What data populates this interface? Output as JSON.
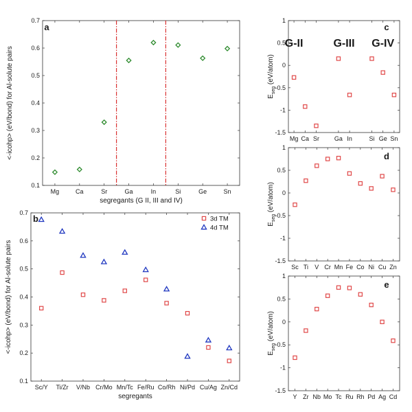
{
  "chart_data": [
    {
      "id": "a",
      "type": "scatter",
      "panel_label": "a",
      "categories": [
        "Mg",
        "Ca",
        "Sr",
        "Ga",
        "In",
        "Si",
        "Ge",
        "Sn"
      ],
      "series": [
        {
          "values": [
            0.148,
            0.158,
            0.33,
            0.555,
            0.62,
            0.611,
            0.563,
            0.598
          ],
          "marker": "diamond",
          "color": "#2e8b2e"
        }
      ],
      "xlabel": "segregants (G II, III and IV)",
      "ylabel": "<-icohp> (eV/bond) for Al-solute pairs",
      "ylim": [
        0.1,
        0.7
      ],
      "yticks": [
        "0.1",
        "0.2",
        "0.3",
        "0.4",
        "0.5",
        "0.6",
        "0.7"
      ],
      "dividers_between": [
        [
          2,
          3
        ],
        [
          4,
          5
        ]
      ],
      "divider_color": "#d62020"
    },
    {
      "id": "b",
      "type": "scatter",
      "panel_label": "b",
      "categories": [
        "Sc/Y",
        "Ti/Zr",
        "V/Nb",
        "Cr/Mo",
        "Mn/Tc",
        "Fe/Ru",
        "Co/Rh",
        "Ni/Pd",
        "Cu/Ag",
        "Zn/Cd"
      ],
      "series": [
        {
          "name": "3d TM",
          "values": [
            0.36,
            0.487,
            0.408,
            0.388,
            0.422,
            0.461,
            0.378,
            0.342,
            0.22,
            0.172
          ],
          "marker": "square",
          "color": "#e04848"
        },
        {
          "name": "4d TM",
          "values": [
            0.676,
            0.634,
            0.548,
            0.525,
            0.559,
            0.497,
            0.428,
            0.188,
            0.246,
            0.218
          ],
          "marker": "triangle",
          "color": "#2038c0"
        }
      ],
      "xlabel": "segregants",
      "ylabel": "<-icohp> (eV/bond) for Al-solute pairs",
      "ylim": [
        0.1,
        0.7
      ],
      "yticks": [
        "0.1",
        "0.2",
        "0.3",
        "0.4",
        "0.5",
        "0.6",
        "0.7"
      ],
      "legend": "top-right"
    },
    {
      "id": "c",
      "type": "scatter",
      "panel_label": "c",
      "categories": [
        "Mg",
        "Ca",
        "Sr",
        "",
        "Ga",
        "In",
        "",
        "Si",
        "Ge",
        "Sn"
      ],
      "series": [
        {
          "values": [
            -0.27,
            -0.92,
            -1.35,
            null,
            0.15,
            -0.66,
            null,
            0.15,
            -0.16,
            -0.66
          ],
          "marker": "square",
          "color": "#e04848"
        }
      ],
      "group_labels": [
        "G-II",
        "G-III",
        "G-IV"
      ],
      "ylabel": "E_seg (eV/atom)",
      "ylim": [
        -1.5,
        1
      ],
      "yticks": [
        "-1.5",
        "-1",
        "-0.5",
        "0",
        "0.5",
        "1"
      ]
    },
    {
      "id": "d",
      "type": "scatter",
      "panel_label": "d",
      "categories": [
        "Sc",
        "Ti",
        "V",
        "Cr",
        "Mn",
        "Fe",
        "Co",
        "Ni",
        "Cu",
        "Zn"
      ],
      "series": [
        {
          "values": [
            -0.26,
            0.27,
            0.6,
            0.75,
            0.77,
            0.43,
            0.21,
            0.1,
            0.37,
            0.07
          ],
          "marker": "square",
          "color": "#e04848"
        }
      ],
      "ylabel": "E_seg (eV/atom)",
      "ylim": [
        -1.5,
        1
      ],
      "yticks": [
        "-1.5",
        "-1",
        "-0.5",
        "0",
        "0.5",
        "1"
      ]
    },
    {
      "id": "e",
      "type": "scatter",
      "panel_label": "e",
      "categories": [
        "Y",
        "Zr",
        "Nb",
        "Mo",
        "Tc",
        "Ru",
        "Rh",
        "Pd",
        "Ag",
        "Cd"
      ],
      "series": [
        {
          "values": [
            -0.78,
            -0.19,
            0.28,
            0.57,
            0.75,
            0.74,
            0.6,
            0.37,
            0.0,
            -0.41
          ],
          "marker": "square",
          "color": "#e04848"
        }
      ],
      "ylabel": "E_seg (eV/atom)",
      "ylim": [
        -1.5,
        1
      ],
      "yticks": [
        "-1.5",
        "-1",
        "-0.5",
        "0",
        "0.5",
        "1"
      ]
    }
  ]
}
